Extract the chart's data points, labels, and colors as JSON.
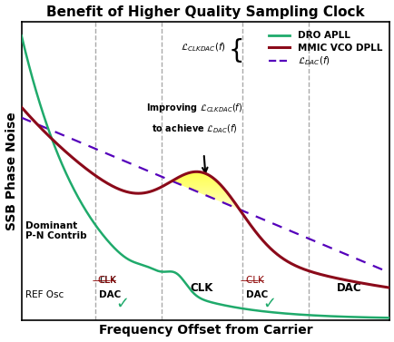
{
  "title": "Benefit of Higher Quality Sampling Clock",
  "xlabel": "Frequency Offset from Carrier",
  "ylabel": "SSB Phase Noise",
  "background_color": "#ffffff",
  "dro_color": "#1faa6b",
  "mmic_color": "#8b0a1a",
  "dac_color": "#5500bb",
  "vline_color": "#aaaaaa",
  "legend_dro": "DRO APLL",
  "legend_mmic": "MMIC VCO DPLL",
  "title_fontsize": 11,
  "label_fontsize": 10,
  "vlines": [
    0.2,
    0.38,
    0.6,
    0.78
  ]
}
